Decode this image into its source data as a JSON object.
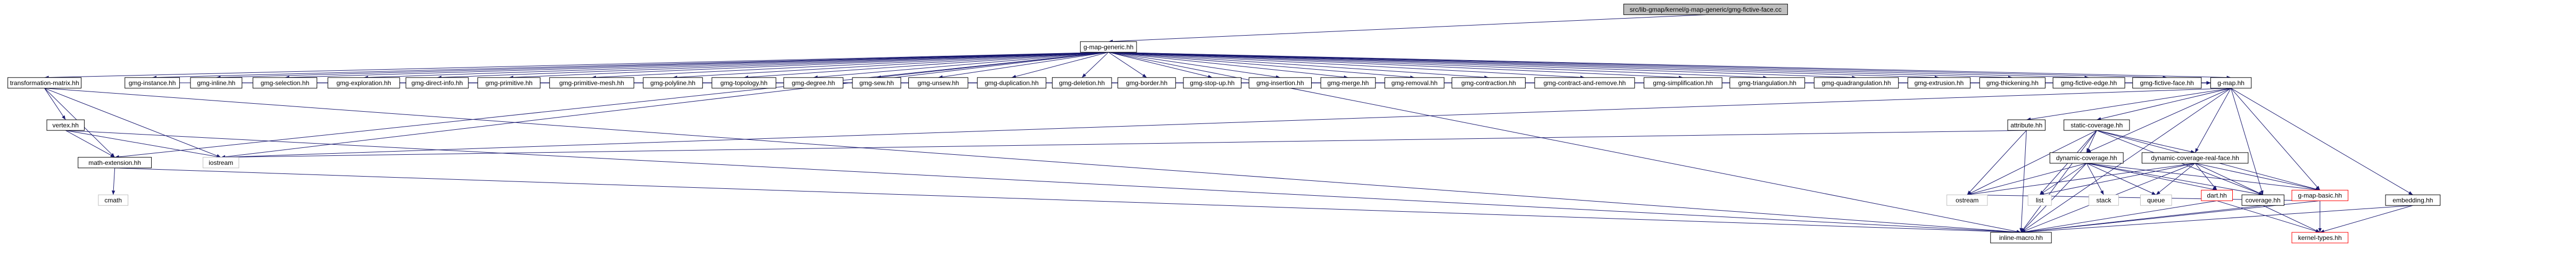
{
  "nodes": [
    {
      "label": "src/lib-gmap/kernel/g-map-generic/gmg-fictive-face.cc"
    },
    {
      "label": "g-map-generic.hh"
    },
    {
      "label": "transformation-matrix.hh"
    },
    {
      "label": "gmg-instance.hh"
    },
    {
      "label": "gmg-inline.hh"
    },
    {
      "label": "gmg-selection.hh"
    },
    {
      "label": "gmg-exploration.hh"
    },
    {
      "label": "gmg-direct-info.hh"
    },
    {
      "label": "gmg-primitive.hh"
    },
    {
      "label": "gmg-primitive-mesh.hh"
    },
    {
      "label": "gmg-polyline.hh"
    },
    {
      "label": "gmg-topology.hh"
    },
    {
      "label": "gmg-degree.hh"
    },
    {
      "label": "gmg-sew.hh"
    },
    {
      "label": "gmg-unsew.hh"
    },
    {
      "label": "gmg-duplication.hh"
    },
    {
      "label": "gmg-deletion.hh"
    },
    {
      "label": "gmg-border.hh"
    },
    {
      "label": "gmg-stop-up.hh"
    },
    {
      "label": "gmg-insertion.hh"
    },
    {
      "label": "gmg-merge.hh"
    },
    {
      "label": "gmg-removal.hh"
    },
    {
      "label": "gmg-contraction.hh"
    },
    {
      "label": "gmg-contract-and-remove.hh"
    },
    {
      "label": "gmg-simplification.hh"
    },
    {
      "label": "gmg-triangulation.hh"
    },
    {
      "label": "gmg-quadrangulation.hh"
    },
    {
      "label": "gmg-extrusion.hh"
    },
    {
      "label": "gmg-thickening.hh"
    },
    {
      "label": "gmg-fictive-edge.hh"
    },
    {
      "label": "gmg-fictive-face.hh"
    },
    {
      "label": "g-map.hh"
    },
    {
      "label": "vertex.hh"
    },
    {
      "label": "math-extension.hh"
    },
    {
      "label": "iostream"
    },
    {
      "label": "cmath"
    },
    {
      "label": "attribute.hh"
    },
    {
      "label": "static-coverage.hh"
    },
    {
      "label": "dynamic-coverage.hh"
    },
    {
      "label": "dynamic-coverage-real-face.hh"
    },
    {
      "label": "ostream"
    },
    {
      "label": "list"
    },
    {
      "label": "stack"
    },
    {
      "label": "queue"
    },
    {
      "label": "dart.hh"
    },
    {
      "label": "coverage.hh"
    },
    {
      "label": "g-map-basic.hh"
    },
    {
      "label": "embedding.hh"
    },
    {
      "label": "inline-macro.hh"
    },
    {
      "label": "kernel-types.hh"
    }
  ]
}
